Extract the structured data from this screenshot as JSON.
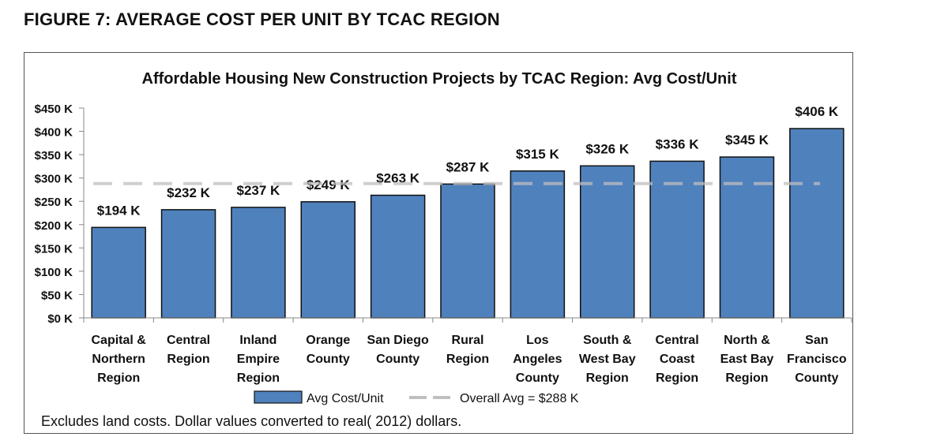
{
  "figure_title": "FIGURE 7: AVERAGE COST PER UNIT BY TCAC REGION",
  "footnote": "Excludes land costs.  Dollar values converted to real( 2012) dollars.",
  "colors": {
    "bar": "#4f81bd",
    "bar_stroke": "#111111",
    "avg_line": "#bfbfbf",
    "axis": "#888888"
  },
  "chart_data": {
    "type": "bar",
    "title": "Affordable Housing New Construction Projects by TCAC Region:  Avg Cost/Unit",
    "categories": [
      [
        "Capital &",
        "Northern",
        "Region"
      ],
      [
        "Central",
        "Region"
      ],
      [
        "Inland",
        "Empire",
        "Region"
      ],
      [
        "Orange",
        "County"
      ],
      [
        "San Diego",
        "County"
      ],
      [
        "Rural",
        "Region"
      ],
      [
        "Los",
        "Angeles",
        "County"
      ],
      [
        "South &",
        "West Bay",
        "Region"
      ],
      [
        "Central",
        "Coast",
        "Region"
      ],
      [
        "North &",
        "East Bay",
        "Region"
      ],
      [
        "San",
        "Francisco",
        "County"
      ]
    ],
    "values": [
      194,
      232,
      237,
      249,
      263,
      287,
      315,
      326,
      336,
      345,
      406
    ],
    "value_labels": [
      "$194 K",
      "$232 K",
      "$237 K",
      "$249 K",
      "$263 K",
      "$287 K",
      "$315 K",
      "$326 K",
      "$336 K",
      "$345 K",
      "$406 K"
    ],
    "overall_avg": 288,
    "ylim": [
      0,
      450
    ],
    "yticks": [
      0,
      50,
      100,
      150,
      200,
      250,
      300,
      350,
      400,
      450
    ],
    "ytick_labels": [
      "$0 K",
      "$50 K",
      "$100 K",
      "$150 K",
      "$200 K",
      "$250 K",
      "$300 K",
      "$350 K",
      "$400 K",
      "$450 K"
    ],
    "xlabel": "",
    "ylabel": "",
    "legend": {
      "position": "bottom",
      "bar_label": "Avg Cost/Unit",
      "line_label": "Overall Avg = $288 K"
    }
  }
}
